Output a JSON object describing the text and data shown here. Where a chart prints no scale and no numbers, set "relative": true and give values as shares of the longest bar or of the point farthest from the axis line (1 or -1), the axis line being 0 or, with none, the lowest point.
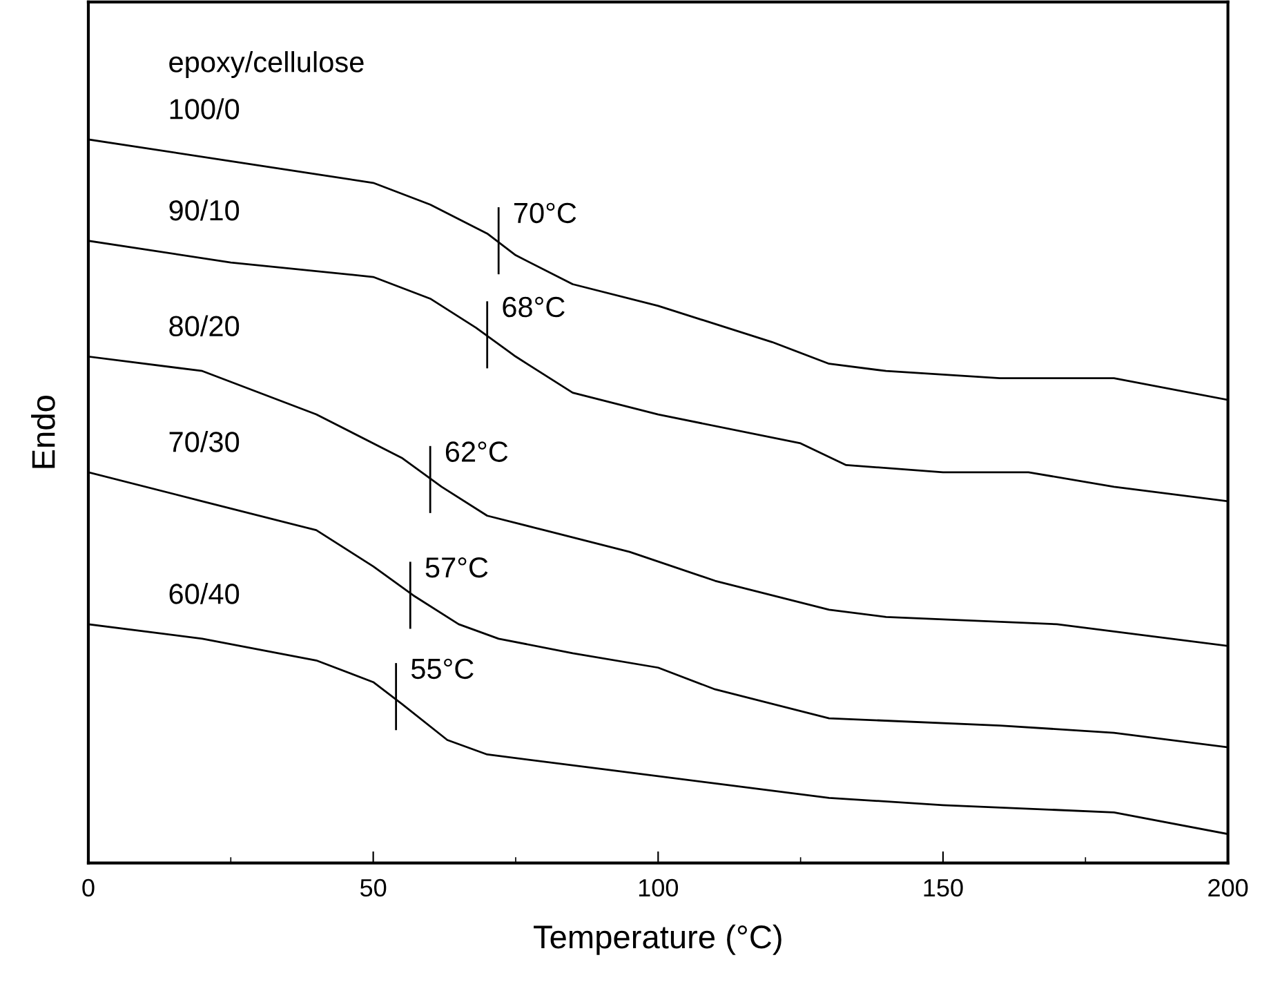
{
  "chart_data": {
    "type": "line",
    "relative": true,
    "xlabel": "Temperature (°C)",
    "ylabel": "Endo",
    "legend_title": "epoxy/cellulose",
    "xlim": [
      0,
      200
    ],
    "xticks": [
      0,
      50,
      100,
      150,
      200
    ],
    "tick_labels": "x",
    "grid": false,
    "legend": false,
    "marker": "none",
    "line_style": "solid",
    "series": [
      {
        "name": "100/0",
        "color": "#000000",
        "x": [
          0,
          25,
          50,
          60,
          70,
          75,
          85,
          100,
          120,
          130,
          140,
          160,
          180,
          200
        ],
        "values": [
          1.0,
          0.97,
          0.94,
          0.91,
          0.87,
          0.84,
          0.8,
          0.77,
          0.72,
          0.69,
          0.68,
          0.67,
          0.67,
          0.64
        ]
      },
      {
        "name": "90/10",
        "color": "#000000",
        "x": [
          0,
          25,
          50,
          60,
          68,
          75,
          85,
          100,
          125,
          133,
          150,
          165,
          180,
          200
        ],
        "values": [
          0.86,
          0.83,
          0.81,
          0.78,
          0.74,
          0.7,
          0.65,
          0.62,
          0.58,
          0.55,
          0.54,
          0.54,
          0.52,
          0.5
        ]
      },
      {
        "name": "80/20",
        "color": "#000000",
        "x": [
          0,
          20,
          40,
          55,
          62,
          70,
          80,
          95,
          110,
          130,
          140,
          170,
          200
        ],
        "values": [
          0.7,
          0.68,
          0.62,
          0.56,
          0.52,
          0.48,
          0.46,
          0.43,
          0.39,
          0.35,
          0.34,
          0.33,
          0.3
        ]
      },
      {
        "name": "70/30",
        "color": "#000000",
        "x": [
          0,
          20,
          40,
          50,
          57,
          65,
          72,
          85,
          100,
          110,
          130,
          160,
          180,
          200
        ],
        "values": [
          0.54,
          0.5,
          0.46,
          0.41,
          0.37,
          0.33,
          0.31,
          0.29,
          0.27,
          0.24,
          0.2,
          0.19,
          0.18,
          0.16
        ]
      },
      {
        "name": "60/40",
        "color": "#000000",
        "x": [
          0,
          20,
          40,
          50,
          55,
          63,
          70,
          90,
          110,
          130,
          150,
          180,
          200
        ],
        "values": [
          0.33,
          0.31,
          0.28,
          0.25,
          0.22,
          0.17,
          0.15,
          0.13,
          0.11,
          0.09,
          0.08,
          0.07,
          0.04
        ]
      }
    ],
    "annotations": [
      {
        "text": "70°C",
        "x": 72,
        "y": 0.86
      },
      {
        "text": "68°C",
        "x": 70,
        "y": 0.73
      },
      {
        "text": "62°C",
        "x": 60,
        "y": 0.53
      },
      {
        "text": "57°C",
        "x": 56.5,
        "y": 0.37
      },
      {
        "text": "55°C",
        "x": 54,
        "y": 0.23
      }
    ]
  }
}
